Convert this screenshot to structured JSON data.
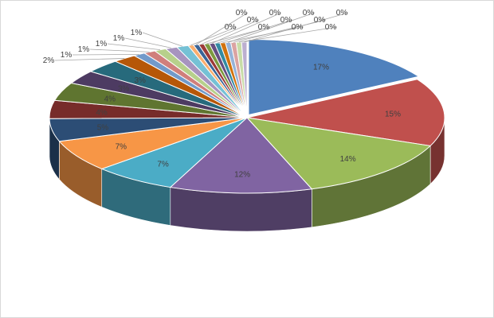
{
  "chart_data": {
    "type": "pie",
    "variant": "3d-exploded-pie",
    "legend": "none",
    "grid": false,
    "slices": [
      {
        "label": "17%",
        "value": 17,
        "color": "#4f81bd"
      },
      {
        "label": "15%",
        "value": 15,
        "color": "#c0504d"
      },
      {
        "label": "14%",
        "value": 14,
        "color": "#9bbb59"
      },
      {
        "label": "12%",
        "value": 12,
        "color": "#8064a2"
      },
      {
        "label": "7%",
        "value": 7,
        "color": "#4bacc6"
      },
      {
        "label": "7%",
        "value": 7,
        "color": "#f79646"
      },
      {
        "label": "5%",
        "value": 5,
        "color": "#2c4d75"
      },
      {
        "label": "4%",
        "value": 4,
        "color": "#772c2a"
      },
      {
        "label": "4%",
        "value": 4,
        "color": "#5f7530"
      },
      {
        "label": "3%",
        "value": 3,
        "color": "#4d3b62"
      },
      {
        "label": "3%",
        "value": 3,
        "color": "#276a7c"
      },
      {
        "label": "2%",
        "value": 2,
        "color": "#b65708"
      },
      {
        "label": "1%",
        "value": 1,
        "color": "#729aca"
      },
      {
        "label": "1%",
        "value": 1,
        "color": "#d07f7c"
      },
      {
        "label": "1%",
        "value": 1,
        "color": "#b7d08b"
      },
      {
        "label": "1%",
        "value": 1,
        "color": "#a794bf"
      },
      {
        "label": "1%",
        "value": 1,
        "color": "#75c1d5"
      },
      {
        "label": "0%",
        "value": 0.45,
        "color": "#f9ae6e"
      },
      {
        "label": "0%",
        "value": 0.45,
        "color": "#3a6496"
      },
      {
        "label": "0%",
        "value": 0.45,
        "color": "#9c3a38"
      },
      {
        "label": "0%",
        "value": 0.45,
        "color": "#7d9a3f"
      },
      {
        "label": "0%",
        "value": 0.45,
        "color": "#664e81"
      },
      {
        "label": "0%",
        "value": 0.45,
        "color": "#338ba3"
      },
      {
        "label": "0%",
        "value": 0.45,
        "color": "#d2720d"
      },
      {
        "label": "0%",
        "value": 0.45,
        "color": "#96b3d8"
      },
      {
        "label": "0%",
        "value": 0.45,
        "color": "#dba3a2"
      },
      {
        "label": "0%",
        "value": 0.45,
        "color": "#c8dca7"
      },
      {
        "label": "0%",
        "value": 0.45,
        "color": "#bcafd0"
      }
    ]
  }
}
